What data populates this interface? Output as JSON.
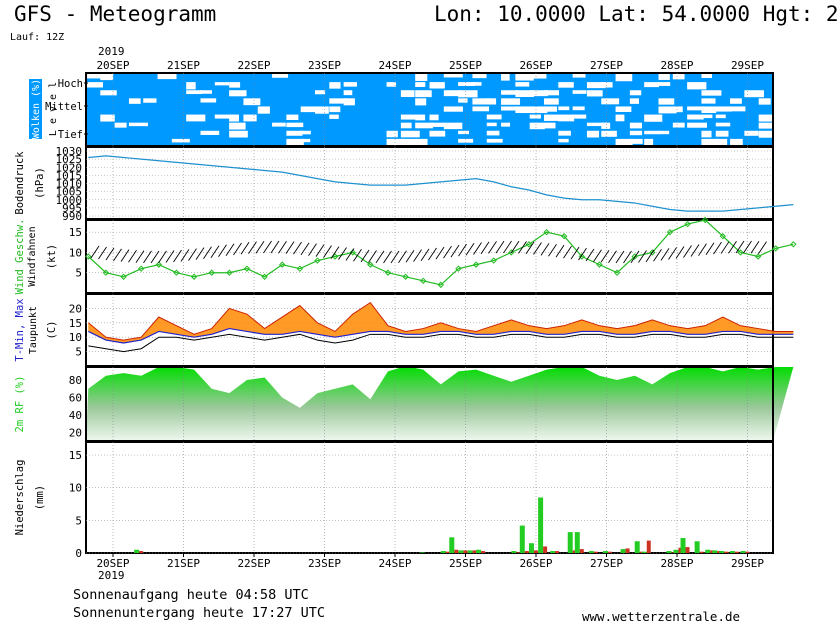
{
  "header": {
    "title": "GFS - Meteogramm",
    "coords": "Lon: 10.0000 Lat: 54.0000 Hgt: 2",
    "run": "Lauf: 12Z",
    "year_top": "2019",
    "year_bottom": "2019"
  },
  "footer": {
    "sunrise": "Sonnenaufgang heute 04:58 UTC",
    "sunset": "Sonnenuntergang heute 17:27 UTC",
    "site": "www.wetterzentrale.de"
  },
  "colors": {
    "cloud_bg": "#0099ff",
    "pressure_line": "#1e90d0",
    "wind_line": "#22bb22",
    "tmax_fill": "#ff8800",
    "tmin_line": "#2222cc",
    "rh_fill": "#22cc22",
    "precip_conv": "#22cc22",
    "precip_strat": "#cc3322"
  },
  "chart_data": [
    {
      "type": "heatmap",
      "name": "clouds",
      "panel_label": "Wolken (%)",
      "panel_sublabel": "Level",
      "levels": [
        "Hoch",
        "Mittel",
        "Tief"
      ],
      "categories": [
        "20SEP",
        "21SEP",
        "22SEP",
        "23SEP",
        "24SEP",
        "25SEP",
        "26SEP",
        "27SEP",
        "28SEP",
        "29SEP"
      ]
    },
    {
      "type": "line",
      "name": "pressure",
      "ylabel": "Bodendruck",
      "yunit": "(hPa)",
      "ylim": [
        990,
        1030
      ],
      "ticks": [
        990,
        995,
        1000,
        1005,
        1010,
        1015,
        1020,
        1025,
        1030
      ],
      "x_days": [
        0,
        0.25,
        0.5,
        0.75,
        1,
        1.25,
        1.5,
        1.75,
        2,
        2.25,
        2.5,
        2.75,
        3,
        3.25,
        3.5,
        3.75,
        4,
        4.25,
        4.5,
        4.75,
        5,
        5.25,
        5.5,
        5.75,
        6,
        6.25,
        6.5,
        6.75,
        7,
        7.25,
        7.5,
        7.75,
        8,
        8.25,
        8.5,
        8.75,
        9,
        9.25,
        9.5,
        9.75,
        10
      ],
      "values": [
        1026,
        1027,
        1026,
        1025,
        1024,
        1023,
        1022,
        1021,
        1020,
        1019,
        1018,
        1017,
        1015,
        1013,
        1011,
        1010,
        1009,
        1009,
        1009,
        1010,
        1011,
        1012,
        1013,
        1011,
        1008,
        1006,
        1003,
        1001,
        1000,
        1000,
        999,
        998,
        996,
        994,
        993,
        993,
        993,
        994,
        995,
        996,
        997
      ]
    },
    {
      "type": "line",
      "name": "wind",
      "ylabel": "Wind Geschw.",
      "ylabel2": "Windfahnen",
      "yunit": "(kt)",
      "ylim": [
        0,
        18
      ],
      "ticks": [
        5,
        10,
        15
      ],
      "x_days": [
        0,
        0.25,
        0.5,
        0.75,
        1,
        1.25,
        1.5,
        1.75,
        2,
        2.25,
        2.5,
        2.75,
        3,
        3.25,
        3.5,
        3.75,
        4,
        4.25,
        4.5,
        4.75,
        5,
        5.25,
        5.5,
        5.75,
        6,
        6.25,
        6.5,
        6.75,
        7,
        7.25,
        7.5,
        7.75,
        8,
        8.25,
        8.5,
        8.75,
        9,
        9.25,
        9.5,
        9.75,
        10
      ],
      "values": [
        9,
        5,
        4,
        6,
        7,
        5,
        4,
        5,
        5,
        6,
        4,
        7,
        6,
        8,
        9,
        10,
        7,
        5,
        4,
        3,
        2,
        6,
        7,
        8,
        10,
        12,
        15,
        14,
        9,
        7,
        5,
        9,
        10,
        15,
        17,
        18,
        14,
        10,
        9,
        11,
        12
      ]
    },
    {
      "type": "area",
      "name": "temperature",
      "ylabel": "T-Min, Max",
      "ylabel2": "Taupunkt",
      "yunit": "(C)",
      "ylim": [
        0,
        25
      ],
      "ticks": [
        5,
        10,
        15,
        20
      ],
      "x_days": [
        0,
        0.25,
        0.5,
        0.75,
        1,
        1.25,
        1.5,
        1.75,
        2,
        2.25,
        2.5,
        2.75,
        3,
        3.25,
        3.5,
        3.75,
        4,
        4.25,
        4.5,
        4.75,
        5,
        5.25,
        5.5,
        5.75,
        6,
        6.25,
        6.5,
        6.75,
        7,
        7.25,
        7.5,
        7.75,
        8,
        8.25,
        8.5,
        8.75,
        9,
        9.25,
        9.5,
        9.75,
        10
      ],
      "tmax": [
        15,
        10,
        9,
        10,
        17,
        14,
        11,
        13,
        20,
        18,
        13,
        17,
        21,
        15,
        12,
        18,
        22,
        14,
        12,
        13,
        15,
        13,
        12,
        14,
        16,
        14,
        13,
        14,
        16,
        14,
        13,
        14,
        16,
        14,
        13,
        14,
        17,
        14,
        13,
        12,
        12
      ],
      "tmin": [
        12,
        9,
        8,
        9,
        12,
        11,
        10,
        11,
        13,
        12,
        11,
        11,
        12,
        11,
        10,
        11,
        12,
        12,
        11,
        11,
        12,
        12,
        11,
        11,
        12,
        12,
        11,
        11,
        12,
        12,
        11,
        11,
        12,
        12,
        11,
        11,
        12,
        12,
        11,
        11,
        11
      ],
      "dewpoint": [
        7,
        6,
        5,
        6,
        10,
        10,
        9,
        10,
        11,
        10,
        9,
        10,
        11,
        9,
        8,
        9,
        11,
        11,
        10,
        10,
        11,
        11,
        10,
        10,
        11,
        11,
        10,
        10,
        11,
        11,
        10,
        10,
        11,
        11,
        10,
        10,
        11,
        11,
        10,
        10,
        10
      ]
    },
    {
      "type": "area",
      "name": "humidity",
      "ylabel": "2m RF (%)",
      "ylim": [
        10,
        95
      ],
      "ticks": [
        20,
        40,
        60,
        80
      ],
      "x_days": [
        0,
        0.25,
        0.5,
        0.75,
        1,
        1.25,
        1.5,
        1.75,
        2,
        2.25,
        2.5,
        2.75,
        3,
        3.25,
        3.5,
        3.75,
        4,
        4.25,
        4.5,
        4.75,
        5,
        5.25,
        5.5,
        5.75,
        6,
        6.25,
        6.5,
        6.75,
        7,
        7.25,
        7.5,
        7.75,
        8,
        8.25,
        8.5,
        8.75,
        9,
        9.25,
        9.5,
        9.75,
        10
      ],
      "values": [
        70,
        85,
        88,
        85,
        95,
        95,
        92,
        70,
        65,
        80,
        83,
        60,
        48,
        65,
        70,
        75,
        58,
        90,
        96,
        92,
        75,
        90,
        92,
        85,
        78,
        85,
        92,
        95,
        95,
        85,
        80,
        85,
        75,
        88,
        95,
        95,
        90,
        95,
        92,
        95,
        95
      ]
    },
    {
      "type": "bar",
      "name": "precipitation",
      "ylabel": "Niederschlag",
      "yunit": "(mm)",
      "ylim": [
        0,
        17
      ],
      "ticks": [
        0,
        5,
        10,
        15
      ],
      "x_days": [
        0.65,
        4.7,
        5.0,
        5.12,
        5.25,
        5.38,
        5.5,
        6.0,
        6.12,
        6.25,
        6.38,
        6.55,
        6.8,
        6.9,
        7.1,
        7.3,
        7.55,
        7.75,
        7.85,
        8.2,
        8.3,
        8.4,
        8.6,
        8.75,
        8.85,
        8.95,
        9.1,
        9.25
      ],
      "convective": [
        0.5,
        0.1,
        0.3,
        2.4,
        0.4,
        0.4,
        0.5,
        0.3,
        4.2,
        1.5,
        8.5,
        0.3,
        3.2,
        3.2,
        0.3,
        0.3,
        0.6,
        1.8,
        0.2,
        0.3,
        0.5,
        2.3,
        1.8,
        0.5,
        0.4,
        0.3,
        0.3,
        0.3
      ],
      "stratiform": [
        0.3,
        0,
        0.2,
        0.5,
        0.4,
        0.4,
        0.3,
        0.1,
        0.3,
        0.4,
        1.0,
        0.3,
        0.4,
        0.6,
        0.2,
        0.2,
        0.7,
        0.2,
        1.9,
        0.1,
        0.8,
        0.9,
        0.2,
        0.4,
        0.3,
        0.2,
        0.2,
        0.2
      ]
    }
  ]
}
